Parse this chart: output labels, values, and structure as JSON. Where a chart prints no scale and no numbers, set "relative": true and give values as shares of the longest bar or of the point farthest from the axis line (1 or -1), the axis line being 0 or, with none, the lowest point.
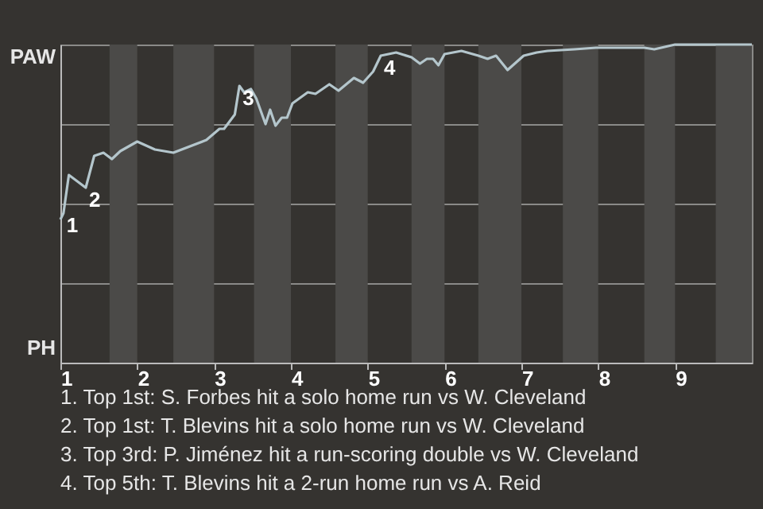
{
  "chart_data": {
    "type": "line",
    "x": [
      1.0,
      1.04,
      1.11,
      1.33,
      1.44,
      1.56,
      1.67,
      1.78,
      2.0,
      2.23,
      2.47,
      2.9,
      3.07,
      3.13,
      3.27,
      3.33,
      3.39,
      3.48,
      3.55,
      3.67,
      3.73,
      3.8,
      3.88,
      3.95,
      4.02,
      4.22,
      4.32,
      4.5,
      4.62,
      4.82,
      4.94,
      5.07,
      5.17,
      5.37,
      5.57,
      5.68,
      5.77,
      5.85,
      5.92,
      6.0,
      6.22,
      6.44,
      6.56,
      6.67,
      6.82,
      7.03,
      7.2,
      7.34,
      7.69,
      7.97,
      8.6,
      8.73,
      9.0,
      10.0
    ],
    "relative": true,
    "series": [
      {
        "color": "#b4c6cc",
        "values": [
          0.45,
          0.47,
          0.59,
          0.55,
          0.65,
          0.66,
          0.64,
          0.665,
          0.695,
          0.67,
          0.66,
          0.7,
          0.735,
          0.735,
          0.78,
          0.87,
          0.85,
          0.86,
          0.83,
          0.75,
          0.795,
          0.745,
          0.77,
          0.77,
          0.815,
          0.85,
          0.845,
          0.875,
          0.855,
          0.895,
          0.88,
          0.915,
          0.965,
          0.975,
          0.96,
          0.94,
          0.955,
          0.955,
          0.935,
          0.97,
          0.98,
          0.965,
          0.955,
          0.965,
          0.92,
          0.965,
          0.975,
          0.98,
          0.985,
          0.99,
          0.99,
          0.985,
          1.0,
          1.0
        ]
      }
    ],
    "xlim": [
      1,
      10
    ],
    "xticks": [
      1,
      2,
      3,
      4,
      5,
      6,
      7,
      8,
      9
    ],
    "grid": "y",
    "marker": "none",
    "line_style": "solid",
    "bands": [
      {
        "axis": "x",
        "from": 1.64,
        "to": 2.0,
        "color": "#4b4a48"
      },
      {
        "axis": "x",
        "from": 2.47,
        "to": 3.0,
        "color": "#4b4a48"
      },
      {
        "axis": "x",
        "from": 3.52,
        "to": 4.0,
        "color": "#4b4a48"
      },
      {
        "axis": "x",
        "from": 4.58,
        "to": 5.0,
        "color": "#4b4a48"
      },
      {
        "axis": "x",
        "from": 5.57,
        "to": 6.0,
        "color": "#4b4a48"
      },
      {
        "axis": "x",
        "from": 6.44,
        "to": 7.0,
        "color": "#4b4a48"
      },
      {
        "axis": "x",
        "from": 7.54,
        "to": 8.0,
        "color": "#4b4a48"
      },
      {
        "axis": "x",
        "from": 8.6,
        "to": 9.0,
        "color": "#4b4a48"
      },
      {
        "axis": "x",
        "from": 9.53,
        "to": 10.0,
        "color": "#4b4a48"
      }
    ],
    "annotations": [
      {
        "text": "1",
        "x": 1.04,
        "y": 0.47
      },
      {
        "text": "2",
        "x": 1.33,
        "y": 0.55
      },
      {
        "text": "3",
        "x": 3.33,
        "y": 0.87
      },
      {
        "text": "4",
        "x": 5.17,
        "y": 0.965
      },
      "PAW",
      "PH",
      "1. Top 1st: S. Forbes hit a solo home run vs W. Cleveland",
      "2. Top 1st: T. Blevins hit a solo home run vs W. Cleveland",
      "3. Top 3rd: P. Jiménez hit a run-scoring double vs W. Cleveland",
      "4. Top 5th: T. Blevins hit a 2-run home run vs A. Reid"
    ]
  }
}
